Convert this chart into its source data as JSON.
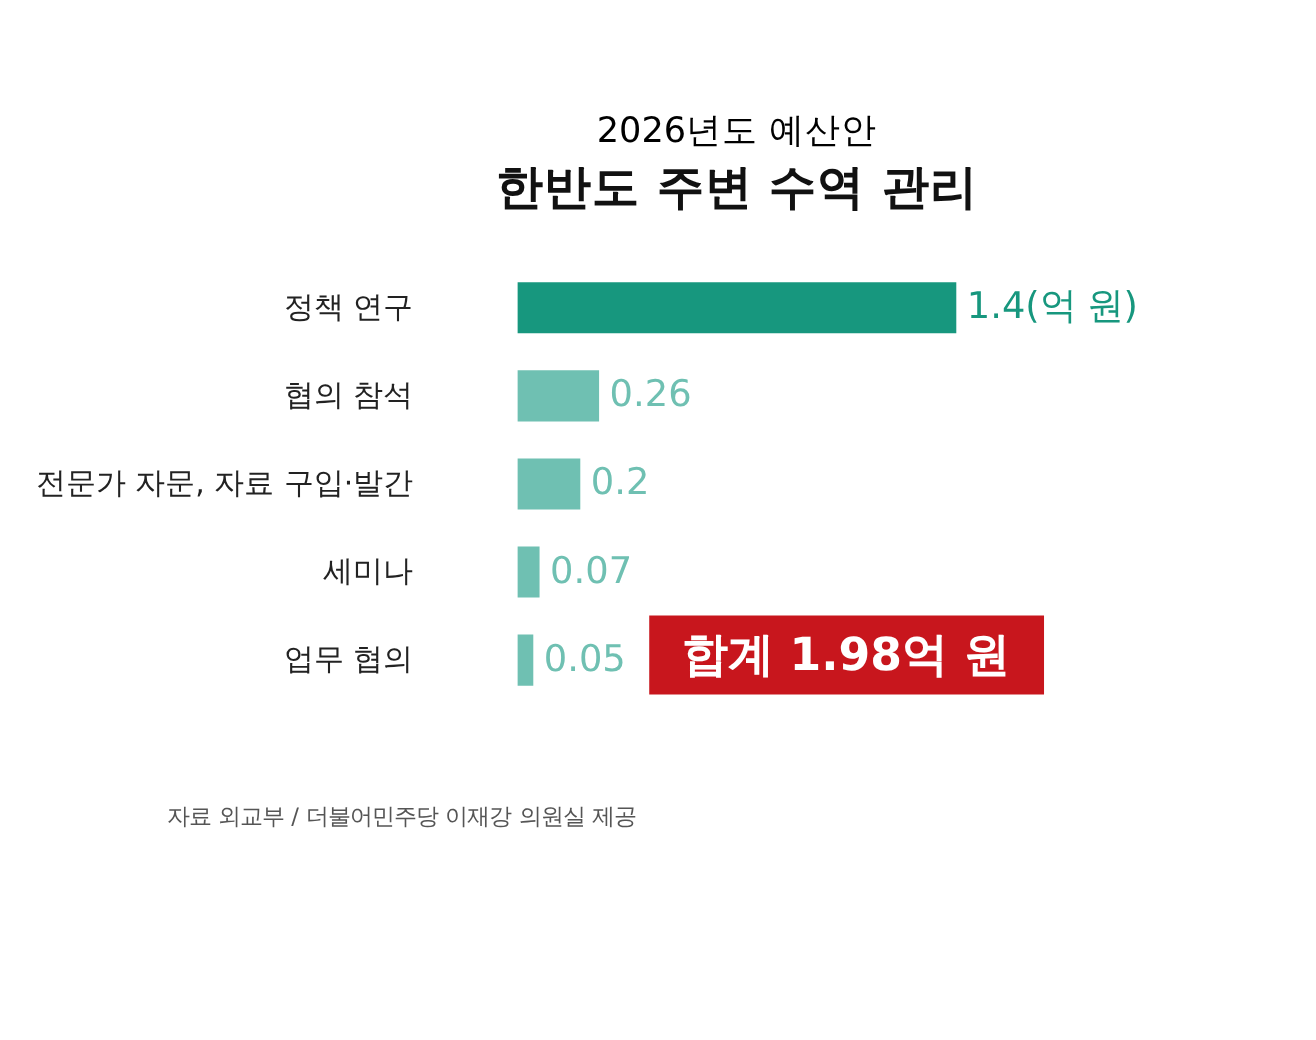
{
  "chart_data": {
    "type": "bar",
    "orientation": "horizontal",
    "title": "2026년도 예산안",
    "subtitle": "한반도 주변 수역 관리",
    "categories": [
      "정책 연구",
      "협의 참석",
      "전문가 자문, 자료 구입·발간",
      "세미나",
      "업무 협의"
    ],
    "values": [
      1.4,
      0.26,
      0.2,
      0.07,
      0.05
    ],
    "colors": [
      "#17977e",
      "#6fc0b2",
      "#6fc0b2",
      "#6fc0b2",
      "#6fc0b2"
    ],
    "value_labels": [
      "1.4(억 원)",
      "0.26",
      "0.2",
      "0.07",
      "0.05"
    ],
    "annotations": [
      "합계 1.98억 원",
      "자료 외교부 / 더불어민주당 이재강 의원실 제공"
    ],
    "grid": false
  }
}
